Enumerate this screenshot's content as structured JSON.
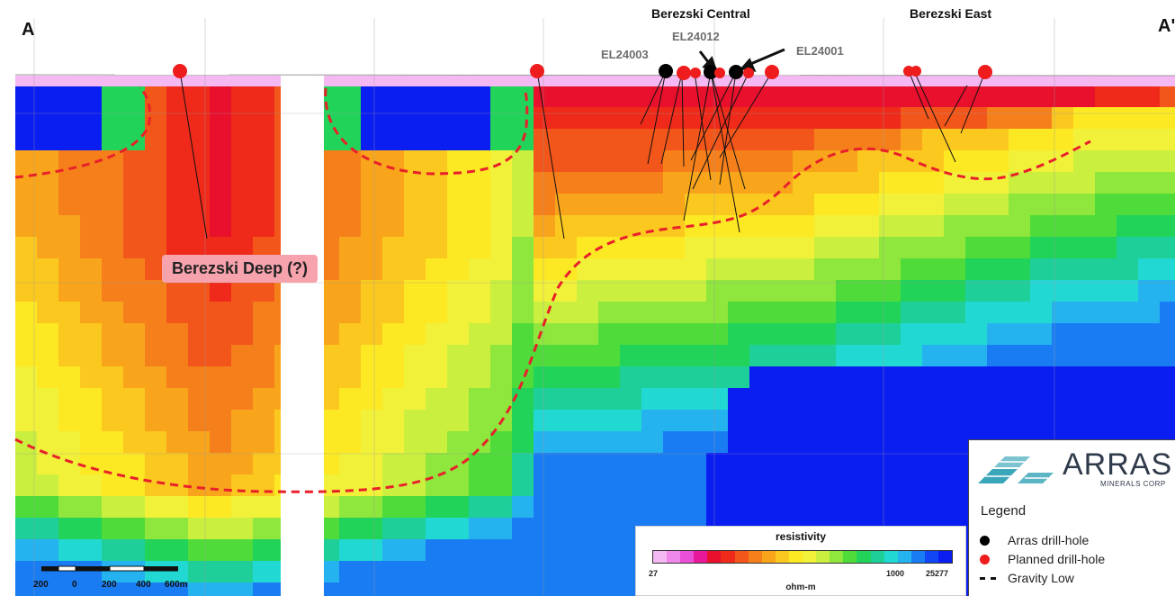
{
  "section": {
    "start_label": "A",
    "end_label": "A'",
    "zones": [
      "Berezski Central",
      "Berezski East"
    ],
    "target_label": "Berezski Deep (?)"
  },
  "drill_hole_labels": [
    "EL24003",
    "EL24012",
    "EL24001"
  ],
  "colorbar": {
    "title": "resistivity",
    "unit": "ohm-m",
    "ticks": [
      "27",
      "1000",
      "25277"
    ],
    "colors": [
      "#f4b8f2",
      "#ee88ea",
      "#e94fd7",
      "#e8189a",
      "#e8102c",
      "#ef2a1a",
      "#f2561a",
      "#f5801b",
      "#f8a51c",
      "#fbc81f",
      "#fde824",
      "#f2f13a",
      "#cbef3f",
      "#8fe63c",
      "#4fdc3a",
      "#22d35a",
      "#1fcf9a",
      "#22d8d2",
      "#25b3ef",
      "#1a7cf3",
      "#1046f3",
      "#0a1ef2"
    ]
  },
  "legend": {
    "logo": "ARRAS",
    "logo_sub": "MINERALS CORP",
    "title": "Legend",
    "items": [
      {
        "label": "Arras drill-hole",
        "color": "#000000"
      },
      {
        "label": "Planned drill-hole",
        "color": "#ee1c1c"
      },
      {
        "label": "Gravity Low",
        "color": "#111111"
      }
    ]
  },
  "scale_bar": {
    "ticks": [
      "200",
      "0",
      "200",
      "400",
      "600m"
    ]
  }
}
